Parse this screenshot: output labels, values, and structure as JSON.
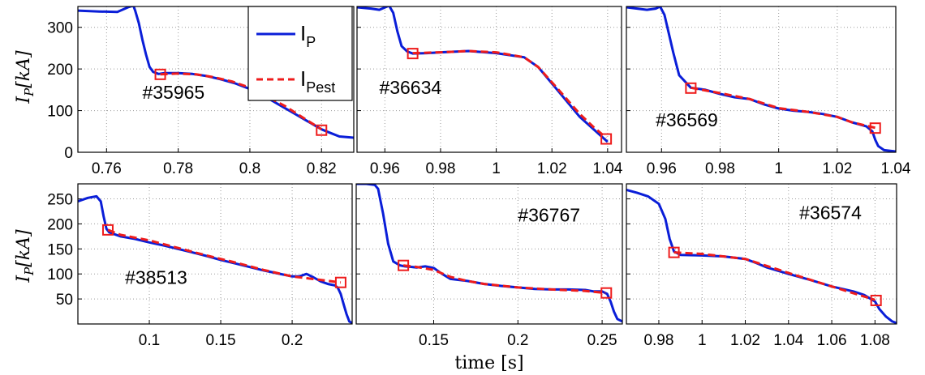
{
  "figure": {
    "ylabel_main": "I",
    "ylabel_sub": "P",
    "ylabel_unit": "[kA]",
    "xlabel": "time [s]",
    "legend": {
      "position": "inside top-right of first panel",
      "entries": [
        {
          "main": "I",
          "sub": "P",
          "style": "solid",
          "color": "#0a1ed8"
        },
        {
          "main": "I",
          "sub": "Pest",
          "style": "dashed",
          "color": "#ee1c1c"
        }
      ]
    },
    "colors": {
      "measured": "#0a1ed8",
      "estimated": "#ee1c1c",
      "marker": "#ee1c1c"
    },
    "grid": "dotted"
  },
  "chart_data": [
    {
      "type": "line",
      "shot_label": "#35965",
      "shot_label_pos": [
        0.77,
        128
      ],
      "xlim": [
        0.752,
        0.829
      ],
      "ylim": [
        0,
        350
      ],
      "xticks": [
        0.76,
        0.78,
        0.8,
        0.82
      ],
      "xtick_labels": [
        "0.76",
        "0.78",
        "0.8",
        "0.82"
      ],
      "yticks": [
        0,
        100,
        200,
        300
      ],
      "ytick_labels": [
        "0",
        "100",
        "200",
        "300"
      ],
      "measured": {
        "x": [
          0.752,
          0.758,
          0.763,
          0.766,
          0.7675,
          0.768,
          0.769,
          0.77,
          0.771,
          0.772,
          0.773,
          0.7745,
          0.776,
          0.78,
          0.784,
          0.788,
          0.792,
          0.796,
          0.8,
          0.804,
          0.808,
          0.812,
          0.816,
          0.818,
          0.82,
          0.822,
          0.825,
          0.829
        ],
        "y": [
          340,
          338,
          337,
          348,
          352,
          340,
          310,
          270,
          235,
          205,
          193,
          188,
          190,
          190,
          188,
          183,
          175,
          165,
          152,
          135,
          115,
          95,
          75,
          65,
          55,
          48,
          38,
          35
        ]
      },
      "estimated": {
        "x": [
          0.775,
          0.78,
          0.785,
          0.79,
          0.795,
          0.8,
          0.805,
          0.81,
          0.815,
          0.82
        ],
        "y": [
          187,
          189,
          187,
          180,
          170,
          155,
          133,
          110,
          82,
          55
        ]
      },
      "markers": [
        {
          "x": 0.775,
          "y": 187
        },
        {
          "x": 0.82,
          "y": 53
        }
      ]
    },
    {
      "type": "line",
      "shot_label": "#36634",
      "shot_label_pos": [
        0.958,
        140
      ],
      "xlim": [
        0.95,
        1.045
      ],
      "ylim": [
        0,
        350
      ],
      "xticks": [
        0.96,
        0.98,
        1.0,
        1.02,
        1.04
      ],
      "xtick_labels": [
        "0.96",
        "0.98",
        "1",
        "1.02",
        "1.04"
      ],
      "yticks": [
        0,
        100,
        200,
        300
      ],
      "ytick_labels": [],
      "measured": {
        "x": [
          0.95,
          0.955,
          0.958,
          0.9615,
          0.963,
          0.9645,
          0.966,
          0.968,
          0.97,
          0.975,
          0.98,
          0.99,
          1.0,
          1.01,
          1.015,
          1.02,
          1.025,
          1.03,
          1.035,
          1.04
        ],
        "y": [
          348,
          345,
          342,
          352,
          335,
          290,
          255,
          242,
          237,
          238,
          240,
          243,
          238,
          228,
          205,
          165,
          125,
          85,
          55,
          25
        ]
      },
      "estimated": {
        "x": [
          0.97,
          0.98,
          0.99,
          1.0,
          1.01,
          1.015,
          1.02,
          1.025,
          1.03,
          1.035,
          1.0395
        ],
        "y": [
          238,
          240,
          243,
          240,
          228,
          205,
          168,
          130,
          92,
          60,
          35
        ]
      },
      "markers": [
        {
          "x": 0.97,
          "y": 237
        },
        {
          "x": 1.0395,
          "y": 32
        }
      ]
    },
    {
      "type": "line",
      "shot_label": "#36569",
      "shot_label_pos": [
        0.958,
        62
      ],
      "xlim": [
        0.948,
        1.04
      ],
      "ylim": [
        0,
        350
      ],
      "xticks": [
        0.96,
        0.98,
        1.0,
        1.02,
        1.04
      ],
      "xtick_labels": [
        "0.96",
        "0.98",
        "1",
        "1.02",
        "1.04"
      ],
      "yticks": [
        0,
        100,
        200,
        300
      ],
      "ytick_labels": [],
      "measured": {
        "x": [
          0.948,
          0.955,
          0.958,
          0.9595,
          0.961,
          0.9625,
          0.964,
          0.966,
          0.97,
          0.975,
          0.98,
          0.985,
          0.99,
          0.995,
          1.0,
          1.005,
          1.01,
          1.015,
          1.02,
          1.025,
          1.03,
          1.032,
          1.033,
          1.034,
          1.036,
          1.04
        ],
        "y": [
          348,
          342,
          345,
          350,
          330,
          285,
          240,
          185,
          155,
          150,
          140,
          132,
          128,
          115,
          105,
          100,
          97,
          92,
          85,
          72,
          62,
          50,
          30,
          15,
          5,
          2
        ]
      },
      "estimated": {
        "x": [
          0.97,
          0.98,
          0.99,
          1.0,
          1.01,
          1.02,
          1.025,
          1.0335
        ],
        "y": [
          155,
          142,
          128,
          106,
          97,
          85,
          72,
          58
        ]
      },
      "markers": [
        {
          "x": 0.97,
          "y": 154
        },
        {
          "x": 1.033,
          "y": 58
        }
      ]
    },
    {
      "type": "line",
      "shot_label": "#38513",
      "shot_label_pos": [
        0.083,
        80
      ],
      "xlim": [
        0.05,
        0.242
      ],
      "ylim": [
        0,
        280
      ],
      "xticks": [
        0.1,
        0.15,
        0.2
      ],
      "xtick_labels": [
        "0.1",
        "0.15",
        "0.2"
      ],
      "yticks": [
        50,
        100,
        150,
        200,
        250
      ],
      "ytick_labels": [
        "50",
        "100",
        "150",
        "200",
        "250"
      ],
      "measured": {
        "x": [
          0.05,
          0.057,
          0.063,
          0.066,
          0.068,
          0.07,
          0.072,
          0.075,
          0.08,
          0.09,
          0.1,
          0.11,
          0.12,
          0.13,
          0.14,
          0.15,
          0.16,
          0.17,
          0.18,
          0.19,
          0.2,
          0.205,
          0.21,
          0.215,
          0.22,
          0.225,
          0.23,
          0.232,
          0.234,
          0.236,
          0.238,
          0.24,
          0.242
        ],
        "y": [
          245,
          252,
          255,
          245,
          215,
          190,
          183,
          180,
          175,
          170,
          163,
          157,
          150,
          143,
          136,
          128,
          121,
          114,
          107,
          101,
          95,
          95,
          100,
          93,
          85,
          80,
          77,
          72,
          60,
          40,
          20,
          5,
          2
        ]
      },
      "estimated": {
        "x": [
          0.071,
          0.08,
          0.1,
          0.12,
          0.14,
          0.16,
          0.18,
          0.2,
          0.22,
          0.234
        ],
        "y": [
          188,
          178,
          167,
          152,
          137,
          123,
          108,
          95,
          88,
          83
        ]
      },
      "markers": [
        {
          "x": 0.071,
          "y": 188
        },
        {
          "x": 0.234,
          "y": 83
        }
      ]
    },
    {
      "type": "line",
      "shot_label": "#36767",
      "shot_label_pos": [
        0.2,
        205
      ],
      "xlim": [
        0.104,
        0.262
      ],
      "ylim": [
        0,
        280
      ],
      "xticks": [
        0.15,
        0.2,
        0.25
      ],
      "xtick_labels": [
        "0.15",
        "0.2",
        "0.25"
      ],
      "yticks": [
        50,
        100,
        150,
        200,
        250
      ],
      "ytick_labels": [],
      "measured": {
        "x": [
          0.104,
          0.11,
          0.115,
          0.117,
          0.12,
          0.123,
          0.126,
          0.13,
          0.133,
          0.14,
          0.145,
          0.15,
          0.155,
          0.16,
          0.17,
          0.18,
          0.19,
          0.2,
          0.21,
          0.22,
          0.23,
          0.24,
          0.245,
          0.25,
          0.253,
          0.255,
          0.257,
          0.259,
          0.262
        ],
        "y": [
          280,
          280,
          278,
          270,
          220,
          160,
          125,
          117,
          115,
          113,
          115,
          112,
          100,
          90,
          86,
          80,
          76,
          73,
          70,
          69,
          69,
          68,
          65,
          65,
          60,
          45,
          25,
          10,
          5
        ]
      },
      "estimated": {
        "x": [
          0.132,
          0.14,
          0.15,
          0.16,
          0.17,
          0.18,
          0.2,
          0.22,
          0.24,
          0.252
        ],
        "y": [
          117,
          114,
          108,
          94,
          86,
          80,
          73,
          69,
          66,
          62
        ]
      },
      "markers": [
        {
          "x": 0.132,
          "y": 117
        },
        {
          "x": 0.2525,
          "y": 62
        }
      ]
    },
    {
      "type": "line",
      "shot_label": "#36574",
      "shot_label_pos": [
        1.045,
        210
      ],
      "xlim": [
        0.965,
        1.09
      ],
      "ylim": [
        0,
        280
      ],
      "xticks": [
        0.98,
        1.0,
        1.02,
        1.04,
        1.06,
        1.08
      ],
      "xtick_labels": [
        "0.98",
        "1",
        "1.02",
        "1.04",
        "1.06",
        "1.08"
      ],
      "yticks": [
        50,
        100,
        150,
        200,
        250
      ],
      "ytick_labels": [],
      "measured": {
        "x": [
          0.965,
          0.97,
          0.975,
          0.98,
          0.983,
          0.985,
          0.987,
          0.99,
          1.0,
          1.01,
          1.02,
          1.025,
          1.03,
          1.04,
          1.05,
          1.06,
          1.07,
          1.075,
          1.08,
          1.082,
          1.085,
          1.088,
          1.09
        ],
        "y": [
          268,
          262,
          255,
          240,
          210,
          170,
          145,
          138,
          137,
          135,
          130,
          122,
          113,
          100,
          88,
          75,
          65,
          58,
          45,
          30,
          15,
          5,
          2
        ]
      },
      "estimated": {
        "x": [
          0.987,
          1.0,
          1.02,
          1.04,
          1.06,
          1.08
        ],
        "y": [
          143,
          140,
          130,
          102,
          75,
          48
        ]
      },
      "markers": [
        {
          "x": 0.987,
          "y": 143
        },
        {
          "x": 1.0805,
          "y": 47
        }
      ]
    }
  ]
}
